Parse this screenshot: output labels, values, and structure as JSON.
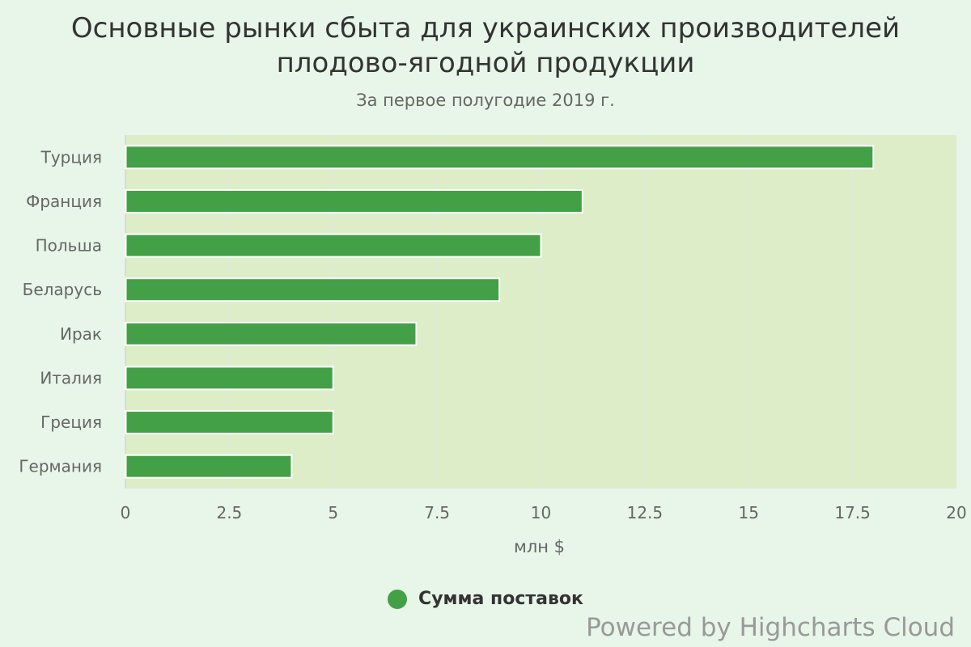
{
  "chart_data": {
    "type": "bar",
    "orientation": "horizontal",
    "title": "Основные рынки сбыта для украинских производителей плодово-ягодной продукции",
    "title_lines": [
      "Основные рынки сбыта для украинских производителей",
      "плодово-ягодной продукции"
    ],
    "subtitle": "За первое полугодие 2019 г.",
    "categories": [
      "Турция",
      "Франция",
      "Польша",
      "Беларусь",
      "Ирак",
      "Италия",
      "Греция",
      "Германия"
    ],
    "series": [
      {
        "name": "Сумма поставок",
        "values": [
          18,
          11,
          10,
          9,
          7,
          5,
          5,
          4
        ],
        "color": "#43a047"
      }
    ],
    "xlabel": "",
    "ylabel": "млн $",
    "ylim": [
      0,
      20
    ],
    "ticks": [
      "0",
      "2.5",
      "5",
      "7.5",
      "10",
      "12.5",
      "15",
      "17.5",
      "20"
    ],
    "grid": true,
    "legend_position": "bottom"
  },
  "credits": "Powered by Highcharts Cloud",
  "colors": {
    "background": "#e8f5e9",
    "plot_background": "#dcedc8",
    "bar": "#43a047",
    "grid": "#e6e6e6"
  }
}
